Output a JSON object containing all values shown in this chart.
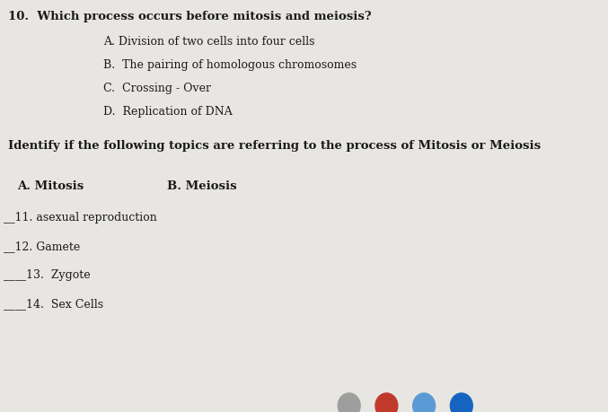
{
  "bg_color": "#e8e6e2",
  "text_color": "#1a1a1a",
  "q10_line": "10.  Which process occurs before mitosis and meiosis?",
  "q10_options": [
    "A. Division of two cells into four cells",
    "B.  The pairing of homologous chromosomes",
    "C.  Crossing - Over",
    "D.  Replication of DNA"
  ],
  "instruction": "Identify if the following topics are referring to the process of Mitosis or Meiosis",
  "col_a": "A. Mitosis",
  "col_b": "B. Meiosis",
  "items": [
    "__11. asexual reproduction",
    "__12. Gamete",
    "____13.  Zygote",
    "____14.  Sex Cells"
  ],
  "font_size_question": 9.5,
  "font_size_options": 9.0,
  "font_size_instruction": 9.5,
  "font_size_items": 9.0,
  "font_size_cols": 9.5,
  "circle_colors": [
    "#9e9e9e",
    "#c0392b",
    "#5b9bd5",
    "#1565c0"
  ],
  "figwidth": 6.77,
  "figheight": 4.59,
  "dpi": 100
}
